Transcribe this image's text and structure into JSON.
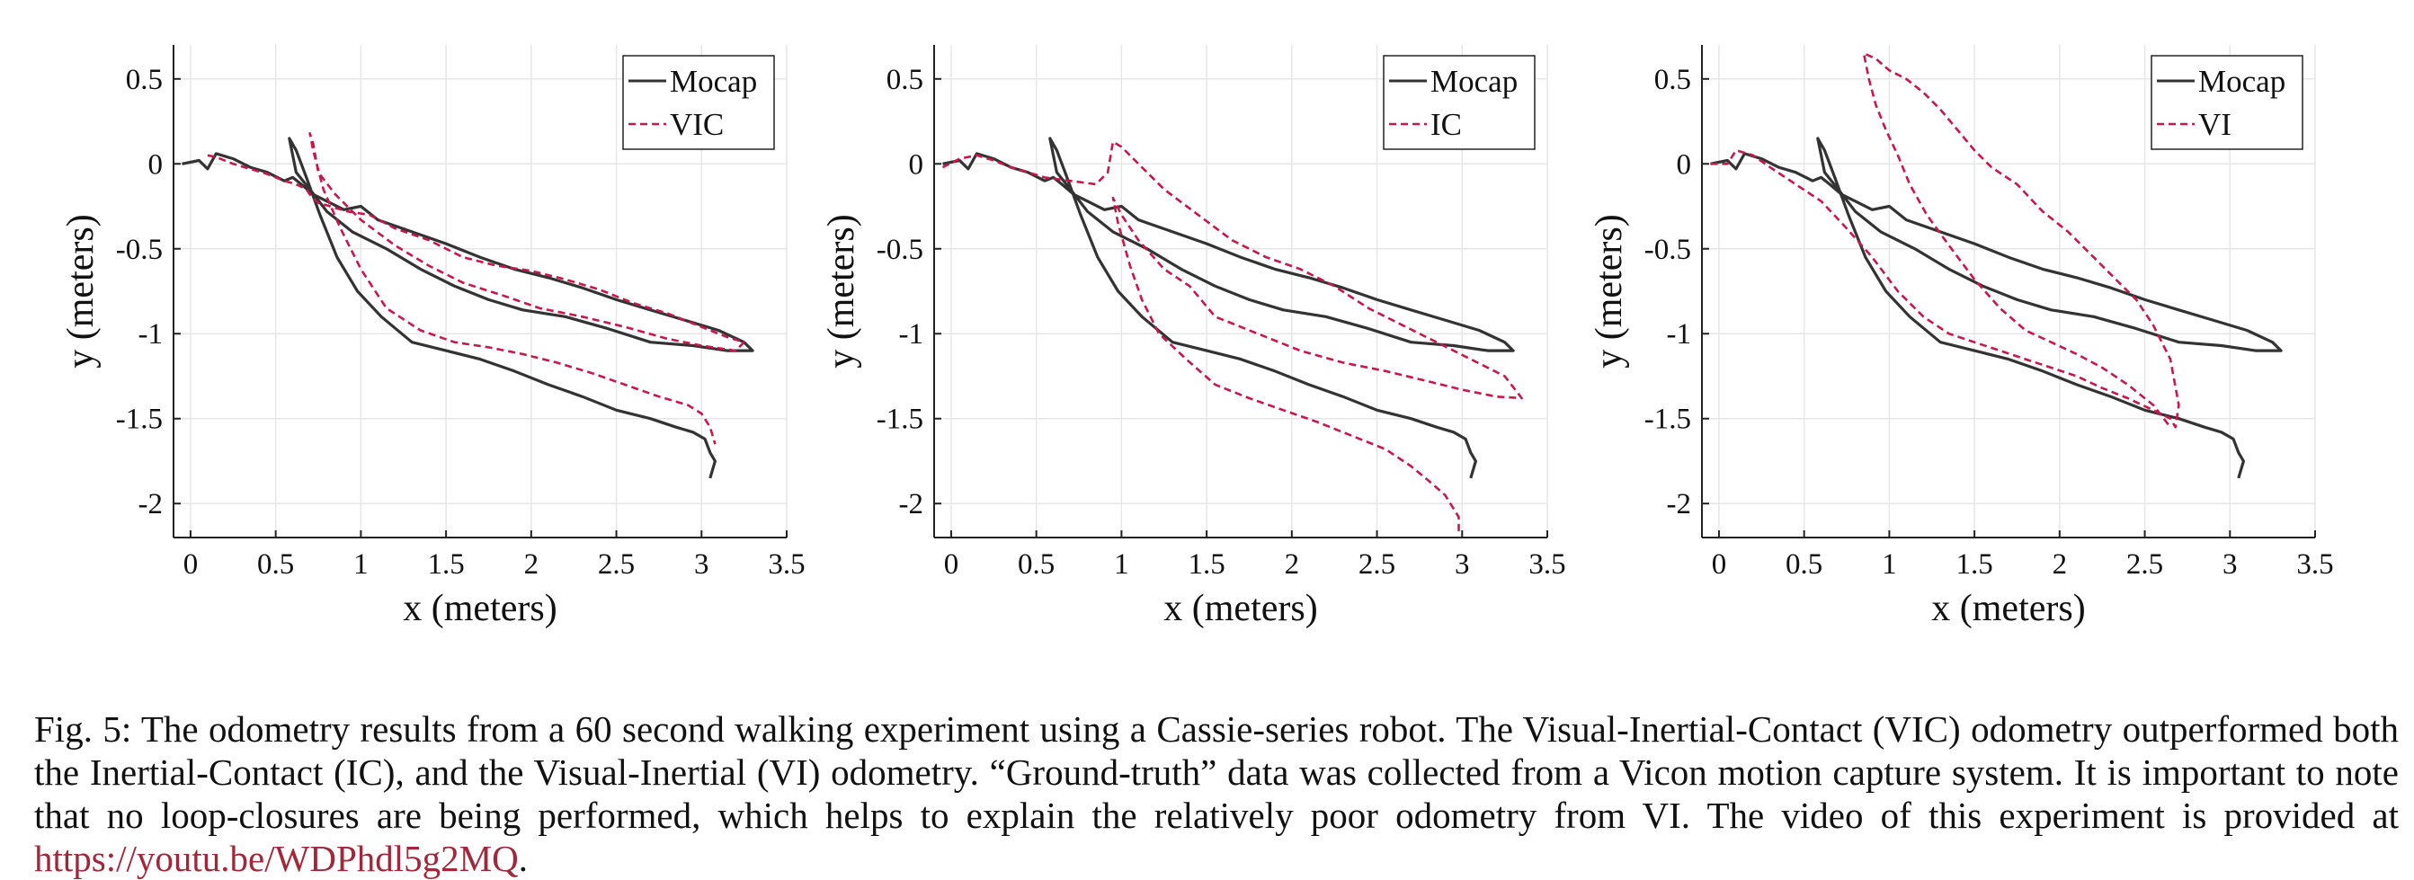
{
  "figure": {
    "colors": {
      "mocap": "#333333",
      "estimate": "#c8174a",
      "grid": "#e6e6e6",
      "axis": "#222222",
      "link": "#a0283a"
    },
    "caption": {
      "prefix": "Fig. 5: ",
      "text": "The odometry results from a 60 second walking experiment using a Cassie-series robot. The Visual-Inertial-Contact (VIC) odometry outperformed both the Inertial-Contact (IC), and the Visual-Inertial (VI) odometry. “Ground-truth” data was collected from a Vicon motion capture system. It is important to note that no loop-closures are being performed, which helps to explain the relatively poor odometry from VI. The video of this experiment is provided at ",
      "link": "https://youtu.be/WDPhdl5g2MQ",
      "suffix": "."
    }
  },
  "chart_data": [
    {
      "type": "line",
      "xlabel": "x (meters)",
      "ylabel": "y (meters)",
      "xlim": [
        -0.1,
        3.5
      ],
      "ylim": [
        -2.2,
        0.7
      ],
      "xticks": [
        0,
        0.5,
        1,
        1.5,
        2,
        2.5,
        3,
        3.5
      ],
      "yticks": [
        0.5,
        0,
        -0.5,
        -1,
        -1.5,
        -2
      ],
      "xtick_labels": [
        "0",
        "0.5",
        "1",
        "1.5",
        "2",
        "2.5",
        "3",
        "3.5"
      ],
      "ytick_labels": [
        "0.5",
        "0",
        "-0.5",
        "-1",
        "-1.5",
        "-2"
      ],
      "grid": true,
      "legend": "top-right",
      "series": [
        {
          "name": "Mocap",
          "style": "solid",
          "x": [
            -0.05,
            0.05,
            0.1,
            0.15,
            0.25,
            0.35,
            0.45,
            0.55,
            0.6,
            0.65,
            0.72,
            0.8,
            0.9,
            1.0,
            1.1,
            1.3,
            1.5,
            1.7,
            1.9,
            2.1,
            2.3,
            2.5,
            2.7,
            2.9,
            3.1,
            3.25,
            3.3,
            3.15,
            2.95,
            2.7,
            2.45,
            2.2,
            1.95,
            1.75,
            1.55,
            1.35,
            1.15,
            0.95,
            0.8,
            0.7,
            0.62,
            0.58,
            0.62,
            0.68,
            0.76,
            0.86,
            0.98,
            1.12,
            1.3,
            1.5,
            1.7,
            1.9,
            2.1,
            2.3,
            2.5,
            2.7,
            2.85,
            2.95,
            3.02,
            3.05,
            3.08,
            3.05
          ],
          "y": [
            0.0,
            0.02,
            -0.03,
            0.06,
            0.03,
            -0.02,
            -0.05,
            -0.1,
            -0.08,
            -0.12,
            -0.18,
            -0.22,
            -0.27,
            -0.25,
            -0.33,
            -0.4,
            -0.47,
            -0.55,
            -0.62,
            -0.67,
            -0.73,
            -0.8,
            -0.86,
            -0.92,
            -0.98,
            -1.05,
            -1.1,
            -1.1,
            -1.07,
            -1.05,
            -0.97,
            -0.9,
            -0.86,
            -0.8,
            -0.72,
            -0.62,
            -0.5,
            -0.4,
            -0.28,
            -0.15,
            -0.05,
            0.15,
            0.08,
            -0.08,
            -0.3,
            -0.55,
            -0.75,
            -0.9,
            -1.05,
            -1.1,
            -1.15,
            -1.22,
            -1.3,
            -1.37,
            -1.45,
            -1.5,
            -1.55,
            -1.58,
            -1.62,
            -1.7,
            -1.75,
            -1.85
          ]
        },
        {
          "name": "VIC",
          "style": "dashed",
          "x": [
            0.1,
            0.15,
            0.25,
            0.35,
            0.45,
            0.55,
            0.62,
            0.68,
            0.7,
            0.75,
            0.82,
            0.92,
            1.05,
            1.2,
            1.4,
            1.6,
            1.8,
            2.0,
            2.2,
            2.4,
            2.6,
            2.8,
            3.0,
            3.15,
            3.25,
            3.2,
            3.0,
            2.8,
            2.55,
            2.3,
            2.05,
            1.85,
            1.6,
            1.4,
            1.2,
            1.0,
            0.85,
            0.75,
            0.72,
            0.7,
            0.72,
            0.78,
            0.88,
            1.0,
            1.15,
            1.35,
            1.55,
            1.75,
            1.95,
            2.15,
            2.35,
            2.55,
            2.75,
            2.92,
            3.0,
            3.05,
            3.08
          ],
          "y": [
            0.05,
            0.04,
            0.0,
            -0.03,
            -0.06,
            -0.1,
            -0.12,
            -0.15,
            -0.18,
            -0.23,
            -0.25,
            -0.28,
            -0.3,
            -0.38,
            -0.45,
            -0.55,
            -0.6,
            -0.63,
            -0.68,
            -0.74,
            -0.82,
            -0.88,
            -0.96,
            -1.02,
            -1.05,
            -1.1,
            -1.07,
            -1.03,
            -0.96,
            -0.9,
            -0.85,
            -0.78,
            -0.7,
            -0.6,
            -0.48,
            -0.33,
            -0.18,
            -0.05,
            0.12,
            0.18,
            0.08,
            -0.15,
            -0.38,
            -0.62,
            -0.85,
            -0.98,
            -1.05,
            -1.08,
            -1.12,
            -1.17,
            -1.23,
            -1.3,
            -1.37,
            -1.42,
            -1.47,
            -1.55,
            -1.65
          ]
        }
      ]
    },
    {
      "type": "line",
      "xlabel": "x (meters)",
      "ylabel": "y (meters)",
      "xlim": [
        -0.1,
        3.5
      ],
      "ylim": [
        -2.2,
        0.7
      ],
      "xticks": [
        0,
        0.5,
        1,
        1.5,
        2,
        2.5,
        3,
        3.5
      ],
      "yticks": [
        0.5,
        0,
        -0.5,
        -1,
        -1.5,
        -2
      ],
      "xtick_labels": [
        "0",
        "0.5",
        "1",
        "1.5",
        "2",
        "2.5",
        "3",
        "3.5"
      ],
      "ytick_labels": [
        "0.5",
        "0",
        "-0.5",
        "-1",
        "-1.5",
        "-2"
      ],
      "grid": true,
      "legend": "top-right",
      "series": [
        {
          "name": "Mocap",
          "style": "solid",
          "x": [
            -0.05,
            0.05,
            0.1,
            0.15,
            0.25,
            0.35,
            0.45,
            0.55,
            0.6,
            0.65,
            0.72,
            0.8,
            0.9,
            1.0,
            1.1,
            1.3,
            1.5,
            1.7,
            1.9,
            2.1,
            2.3,
            2.5,
            2.7,
            2.9,
            3.1,
            3.25,
            3.3,
            3.15,
            2.95,
            2.7,
            2.45,
            2.2,
            1.95,
            1.75,
            1.55,
            1.35,
            1.15,
            0.95,
            0.8,
            0.7,
            0.62,
            0.58,
            0.62,
            0.68,
            0.76,
            0.86,
            0.98,
            1.12,
            1.3,
            1.5,
            1.7,
            1.9,
            2.1,
            2.3,
            2.5,
            2.7,
            2.85,
            2.95,
            3.02,
            3.05,
            3.08,
            3.05
          ],
          "y": [
            0.0,
            0.02,
            -0.03,
            0.06,
            0.03,
            -0.02,
            -0.05,
            -0.1,
            -0.08,
            -0.12,
            -0.18,
            -0.22,
            -0.27,
            -0.25,
            -0.33,
            -0.4,
            -0.47,
            -0.55,
            -0.62,
            -0.67,
            -0.73,
            -0.8,
            -0.86,
            -0.92,
            -0.98,
            -1.05,
            -1.1,
            -1.1,
            -1.07,
            -1.05,
            -0.97,
            -0.9,
            -0.86,
            -0.8,
            -0.72,
            -0.62,
            -0.5,
            -0.4,
            -0.28,
            -0.15,
            -0.05,
            0.15,
            0.08,
            -0.08,
            -0.3,
            -0.55,
            -0.75,
            -0.9,
            -1.05,
            -1.1,
            -1.15,
            -1.22,
            -1.3,
            -1.37,
            -1.45,
            -1.5,
            -1.55,
            -1.58,
            -1.62,
            -1.7,
            -1.75,
            -1.85
          ]
        },
        {
          "name": "IC",
          "style": "dashed",
          "x": [
            -0.05,
            0.05,
            0.15,
            0.25,
            0.35,
            0.45,
            0.55,
            0.7,
            0.85,
            0.92,
            0.95,
            1.0,
            1.1,
            1.25,
            1.45,
            1.65,
            1.85,
            2.05,
            2.25,
            2.45,
            2.65,
            2.85,
            3.05,
            3.25,
            3.35,
            3.2,
            3.0,
            2.8,
            2.55,
            2.3,
            2.05,
            1.8,
            1.55,
            1.4,
            1.25,
            1.1,
            1.0,
            0.95,
            0.98,
            1.05,
            1.12,
            1.22,
            1.38,
            1.55,
            1.75,
            1.95,
            2.15,
            2.35,
            2.55,
            2.7,
            2.82,
            2.9,
            2.95,
            2.98,
            2.98,
            2.98
          ],
          "y": [
            -0.02,
            0.03,
            0.05,
            0.02,
            -0.02,
            -0.05,
            -0.08,
            -0.1,
            -0.12,
            -0.05,
            0.13,
            0.1,
            0.0,
            -0.15,
            -0.3,
            -0.45,
            -0.55,
            -0.62,
            -0.72,
            -0.85,
            -0.95,
            -1.05,
            -1.15,
            -1.25,
            -1.38,
            -1.37,
            -1.33,
            -1.28,
            -1.22,
            -1.17,
            -1.1,
            -1.0,
            -0.9,
            -0.72,
            -0.62,
            -0.45,
            -0.3,
            -0.2,
            -0.35,
            -0.6,
            -0.8,
            -1.0,
            -1.15,
            -1.3,
            -1.38,
            -1.45,
            -1.52,
            -1.6,
            -1.68,
            -1.78,
            -1.88,
            -1.95,
            -2.03,
            -2.08,
            -2.12,
            -2.18
          ]
        }
      ]
    },
    {
      "type": "line",
      "xlabel": "x (meters)",
      "ylabel": "y (meters)",
      "xlim": [
        -0.1,
        3.5
      ],
      "ylim": [
        -2.2,
        0.7
      ],
      "xticks": [
        0,
        0.5,
        1,
        1.5,
        2,
        2.5,
        3,
        3.5
      ],
      "yticks": [
        0.5,
        0,
        -0.5,
        -1,
        -1.5,
        -2
      ],
      "xtick_labels": [
        "0",
        "0.5",
        "1",
        "1.5",
        "2",
        "2.5",
        "3",
        "3.5"
      ],
      "ytick_labels": [
        "0.5",
        "0",
        "-0.5",
        "-1",
        "-1.5",
        "-2"
      ],
      "grid": true,
      "legend": "top-right",
      "series": [
        {
          "name": "Mocap",
          "style": "solid",
          "x": [
            -0.05,
            0.05,
            0.1,
            0.15,
            0.25,
            0.35,
            0.45,
            0.55,
            0.6,
            0.65,
            0.72,
            0.8,
            0.9,
            1.0,
            1.1,
            1.3,
            1.5,
            1.7,
            1.9,
            2.1,
            2.3,
            2.5,
            2.7,
            2.9,
            3.1,
            3.25,
            3.3,
            3.15,
            2.95,
            2.7,
            2.45,
            2.2,
            1.95,
            1.75,
            1.55,
            1.35,
            1.15,
            0.95,
            0.8,
            0.7,
            0.62,
            0.58,
            0.62,
            0.68,
            0.76,
            0.86,
            0.98,
            1.12,
            1.3,
            1.5,
            1.7,
            1.9,
            2.1,
            2.3,
            2.5,
            2.7,
            2.85,
            2.95,
            3.02,
            3.05,
            3.08,
            3.05
          ],
          "y": [
            0.0,
            0.02,
            -0.03,
            0.06,
            0.03,
            -0.02,
            -0.05,
            -0.1,
            -0.08,
            -0.12,
            -0.18,
            -0.22,
            -0.27,
            -0.25,
            -0.33,
            -0.4,
            -0.47,
            -0.55,
            -0.62,
            -0.67,
            -0.73,
            -0.8,
            -0.86,
            -0.92,
            -0.98,
            -1.05,
            -1.1,
            -1.1,
            -1.07,
            -1.05,
            -0.97,
            -0.9,
            -0.86,
            -0.8,
            -0.72,
            -0.62,
            -0.5,
            -0.4,
            -0.28,
            -0.15,
            -0.05,
            0.15,
            0.08,
            -0.08,
            -0.3,
            -0.55,
            -0.75,
            -0.9,
            -1.05,
            -1.1,
            -1.15,
            -1.22,
            -1.3,
            -1.37,
            -1.45,
            -1.5,
            -1.55,
            -1.58,
            -1.62,
            -1.7,
            -1.75,
            -1.85
          ]
        },
        {
          "name": "VI",
          "style": "dashed",
          "x": [
            -0.05,
            0.05,
            0.1,
            0.2,
            0.3,
            0.45,
            0.6,
            0.75,
            0.9,
            1.05,
            1.2,
            1.35,
            1.5,
            1.65,
            1.8,
            1.95,
            2.1,
            2.25,
            2.4,
            2.55,
            2.65,
            2.68,
            2.7,
            2.65,
            2.55,
            2.45,
            2.35,
            2.2,
            2.05,
            1.9,
            1.75,
            1.6,
            1.5,
            1.4,
            1.3,
            1.2,
            1.1,
            1.0,
            0.92,
            0.85,
            0.88,
            0.92,
            0.98,
            1.05,
            1.12,
            1.22,
            1.35,
            1.5,
            1.65,
            1.8,
            1.95,
            2.1,
            2.25,
            2.4,
            2.55,
            2.65
          ],
          "y": [
            0.0,
            0.0,
            0.08,
            0.05,
            -0.02,
            -0.12,
            -0.22,
            -0.38,
            -0.55,
            -0.75,
            -0.9,
            -1.0,
            -1.05,
            -1.1,
            -1.15,
            -1.2,
            -1.25,
            -1.32,
            -1.38,
            -1.45,
            -1.5,
            -1.55,
            -1.42,
            -1.15,
            -0.95,
            -0.8,
            -0.7,
            -0.55,
            -0.4,
            -0.28,
            -0.12,
            -0.02,
            0.08,
            0.2,
            0.32,
            0.42,
            0.5,
            0.55,
            0.62,
            0.65,
            0.5,
            0.35,
            0.2,
            0.05,
            -0.12,
            -0.3,
            -0.48,
            -0.68,
            -0.85,
            -0.98,
            -1.05,
            -1.12,
            -1.2,
            -1.3,
            -1.42,
            -1.55
          ]
        }
      ]
    }
  ]
}
